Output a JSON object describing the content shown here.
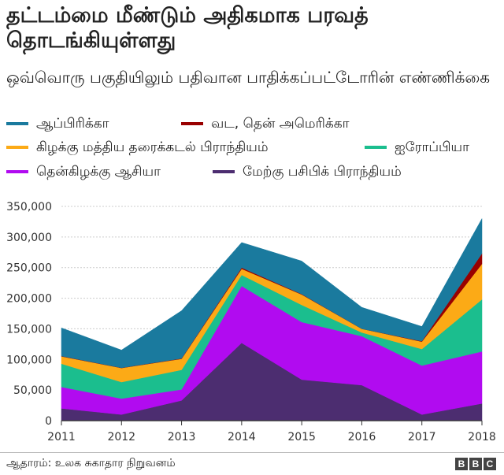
{
  "title": "தட்டம்மை மீண்டும் அதிகமாக பரவத் தொடங்கியுள்ளது",
  "subtitle": "ஒவ்வொரு பகுதியிலும் பதிவான பாதிக்கப்பட்டோரின் எண்ணிக்கை",
  "source": "ஆதாரம்: உலக சுகாதார நிறுவனம்",
  "logo": "BBC",
  "colors": {
    "africa": "#1a7a9e",
    "americas": "#990000",
    "eastern_mediterranean": "#fcaa16",
    "europe": "#1bbe8e",
    "southeast_asia": "#b10bf0",
    "western_pacific": "#4c2d70"
  },
  "chart_data": {
    "type": "area",
    "stacked": true,
    "x": [
      2011,
      2012,
      2013,
      2014,
      2015,
      2016,
      2017,
      2018
    ],
    "ylim": [
      0,
      350000
    ],
    "yticks": [
      0,
      50000,
      100000,
      150000,
      200000,
      250000,
      300000,
      350000
    ],
    "ytick_labels": [
      "0",
      "50,000",
      "100,000",
      "150,000",
      "200,000",
      "250,000",
      "300,000",
      "350,000"
    ],
    "grid": true,
    "legend_position": "top",
    "series": [
      {
        "name": "மேற்கு பசிபிக் பிராந்தியம்",
        "key": "western_pacific",
        "values": [
          20000,
          10000,
          33000,
          127000,
          67000,
          58000,
          10000,
          28000
        ]
      },
      {
        "name": "தென்கிழக்கு ஆசியா",
        "key": "southeast_asia",
        "values": [
          35000,
          26000,
          18000,
          93000,
          94000,
          80000,
          80000,
          85000
        ]
      },
      {
        "name": "ஐரோப்பியா",
        "key": "europe",
        "values": [
          38000,
          27000,
          32000,
          18000,
          28000,
          6000,
          27000,
          85000
        ]
      },
      {
        "name": "கிழக்கு மத்திய தரைக்கடல் பிராந்தியம்",
        "key": "eastern_mediterranean",
        "values": [
          12000,
          23000,
          18000,
          10000,
          17000,
          6000,
          12000,
          58000
        ]
      },
      {
        "name": "வட, தென் அமெரிக்கா",
        "key": "americas",
        "values": [
          500,
          300,
          600,
          2000,
          700,
          100,
          800,
          17000
        ]
      },
      {
        "name": "ஆப்பிரிக்கா",
        "key": "africa",
        "values": [
          46000,
          29000,
          78000,
          41000,
          54000,
          35000,
          24000,
          57000
        ]
      }
    ]
  },
  "legend": [
    {
      "label": "ஆப்பிரிக்கா",
      "key": "africa"
    },
    {
      "label": "வட, தென்  அமெரிக்கா",
      "key": "americas"
    },
    {
      "label": "கிழக்கு மத்திய தரைக்கடல் பிராந்தியம்",
      "key": "eastern_mediterranean"
    },
    {
      "label": "ஐரோப்பியா",
      "key": "europe"
    },
    {
      "label": "தென்கிழக்கு ஆசியா",
      "key": "southeast_asia"
    },
    {
      "label": "மேற்கு பசிபிக் பிராந்தியம்",
      "key": "western_pacific"
    }
  ]
}
